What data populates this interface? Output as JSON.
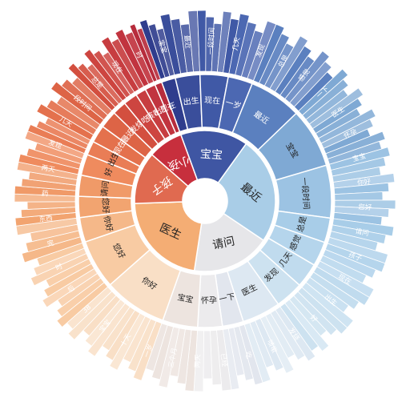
{
  "chart_data": {
    "type": "sunburst",
    "title": "",
    "grid": false,
    "legend": "none",
    "palette": {
      "blue_dark": "#2c3785",
      "blue_mid": "#4a6bb5",
      "blue_light": "#a9cde7",
      "red_dark": "#c62a39",
      "red_light": "#e36a5d",
      "orange": "#f2a56a",
      "peach": "#f7d1ae",
      "grey": "#e9e9ea"
    },
    "rings": [
      {
        "level": 1,
        "segments": [
          {
            "label": "宝宝",
            "share": 0.155,
            "color": "#3f56a3"
          },
          {
            "label": "最近",
            "share": 0.245,
            "color": "#a9cde7"
          },
          {
            "label": "请问",
            "share": 0.18,
            "color": "#e6e6e9"
          },
          {
            "label": "医生",
            "share": 0.22,
            "color": "#f4ad74"
          },
          {
            "label": "孩子",
            "share": 0.12,
            "color": "#e06a50"
          },
          {
            "label": "小孩",
            "share": 0.08,
            "color": "#c72f3d"
          }
        ]
      },
      {
        "level": 2,
        "segments": [
          {
            "label": "",
            "share": 0.02,
            "color": "#2f3d8d"
          },
          {
            "label": "出生",
            "share": 0.035,
            "color": "#3a4e9b"
          },
          {
            "label": "现在",
            "share": 0.04,
            "color": "#4059a6"
          },
          {
            "label": "一岁",
            "share": 0.035,
            "color": "#4c68b2"
          },
          {
            "label": "最近",
            "share": 0.075,
            "color": "#5b80bf"
          },
          {
            "label": "宝宝",
            "share": 0.085,
            "color": "#7fa9d4"
          },
          {
            "label": "一段时间",
            "share": 0.075,
            "color": "#9cc3e3"
          },
          {
            "label": "总是",
            "share": 0.035,
            "color": "#a8cde8"
          },
          {
            "label": "感觉",
            "share": 0.035,
            "color": "#b5d5ec"
          },
          {
            "label": "几天",
            "share": 0.035,
            "color": "#c0dbee"
          },
          {
            "label": "发现",
            "share": 0.04,
            "color": "#cde2f0"
          },
          {
            "label": "医生",
            "share": 0.055,
            "color": "#dde8f2"
          },
          {
            "label": "一下",
            "share": 0.03,
            "color": "#e2e6ee"
          },
          {
            "label": "怀孕",
            "share": 0.035,
            "color": "#ecebed"
          },
          {
            "label": "宝宝",
            "share": 0.05,
            "color": "#ede4df"
          },
          {
            "label": "你好",
            "share": 0.09,
            "color": "#f9dfc6"
          },
          {
            "label": "您好",
            "share": 0.07,
            "color": "#f8cba3"
          },
          {
            "label": "你好",
            "share": 0.035,
            "color": "#f5b889"
          },
          {
            "label": "您好",
            "share": 0.03,
            "color": "#f2a470"
          },
          {
            "label": "请问",
            "share": 0.03,
            "color": "#f09a68"
          },
          {
            "label": "好",
            "share": 0.03,
            "color": "#ef8b5e"
          },
          {
            "label": "出生",
            "share": 0.02,
            "color": "#e97d56"
          },
          {
            "label": "现在",
            "share": 0.025,
            "color": "#e4714d"
          },
          {
            "label": "最近",
            "share": 0.025,
            "color": "#dd6446"
          },
          {
            "label": "发烧",
            "share": 0.02,
            "color": "#d34f3f"
          },
          {
            "label": "吃",
            "share": 0.02,
            "color": "#cd4540"
          },
          {
            "label": "咳嗽",
            "share": 0.015,
            "color": "#c73d40"
          },
          {
            "label": "出生",
            "share": 0.015,
            "color": "#c1343f"
          },
          {
            "label": "现在",
            "share": 0.01,
            "color": "#b72c3c"
          }
        ]
      }
    ],
    "outer_labels": [
      "宝宝",
      "最近",
      "一段时间",
      "几天",
      "发现",
      "总是",
      "感觉",
      "一下",
      "医生",
      "怀孕",
      "宝宝",
      "你好",
      "您好",
      "请问",
      "孩子",
      "现在",
      "出生",
      "好",
      "发烧",
      "咳嗽",
      "吃",
      "已经",
      "两天",
      "三个月",
      "一岁",
      "十天",
      "宝宝",
      "38",
      "后",
      "时",
      "完",
      "东西",
      "药",
      "两天",
      "发现",
      "几天",
      "一段时间",
      "总是",
      "现在",
      "时"
    ]
  }
}
